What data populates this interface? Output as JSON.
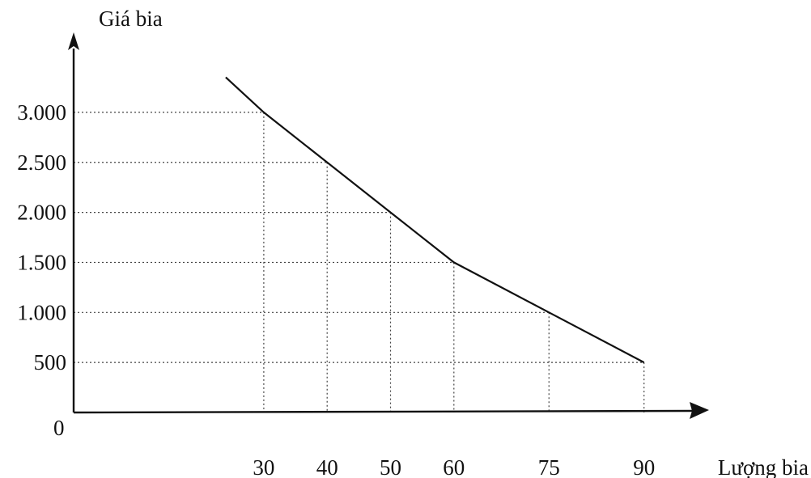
{
  "chart_data": {
    "type": "line",
    "title": "",
    "ylabel": "Giá bia",
    "xlabel": "Lượng bia",
    "origin_label": "0",
    "x_ticks": [
      30,
      40,
      50,
      60,
      75,
      90
    ],
    "x_tick_labels": [
      "30",
      "40",
      "50",
      "60",
      "75",
      "90"
    ],
    "y_ticks": [
      500,
      1000,
      1500,
      2000,
      2500,
      3000
    ],
    "y_tick_labels": [
      "500",
      "1.000",
      "1.500",
      "2.000",
      "2.500",
      "3.000"
    ],
    "xlim": [
      0,
      100
    ],
    "ylim": [
      0,
      3500
    ],
    "grid": "dotted guide lines at each data point",
    "series": [
      {
        "x": [
          24,
          30,
          40,
          50,
          60,
          75,
          90
        ],
        "y": [
          3350,
          3000,
          2500,
          2000,
          1500,
          1000,
          500
        ]
      }
    ]
  }
}
